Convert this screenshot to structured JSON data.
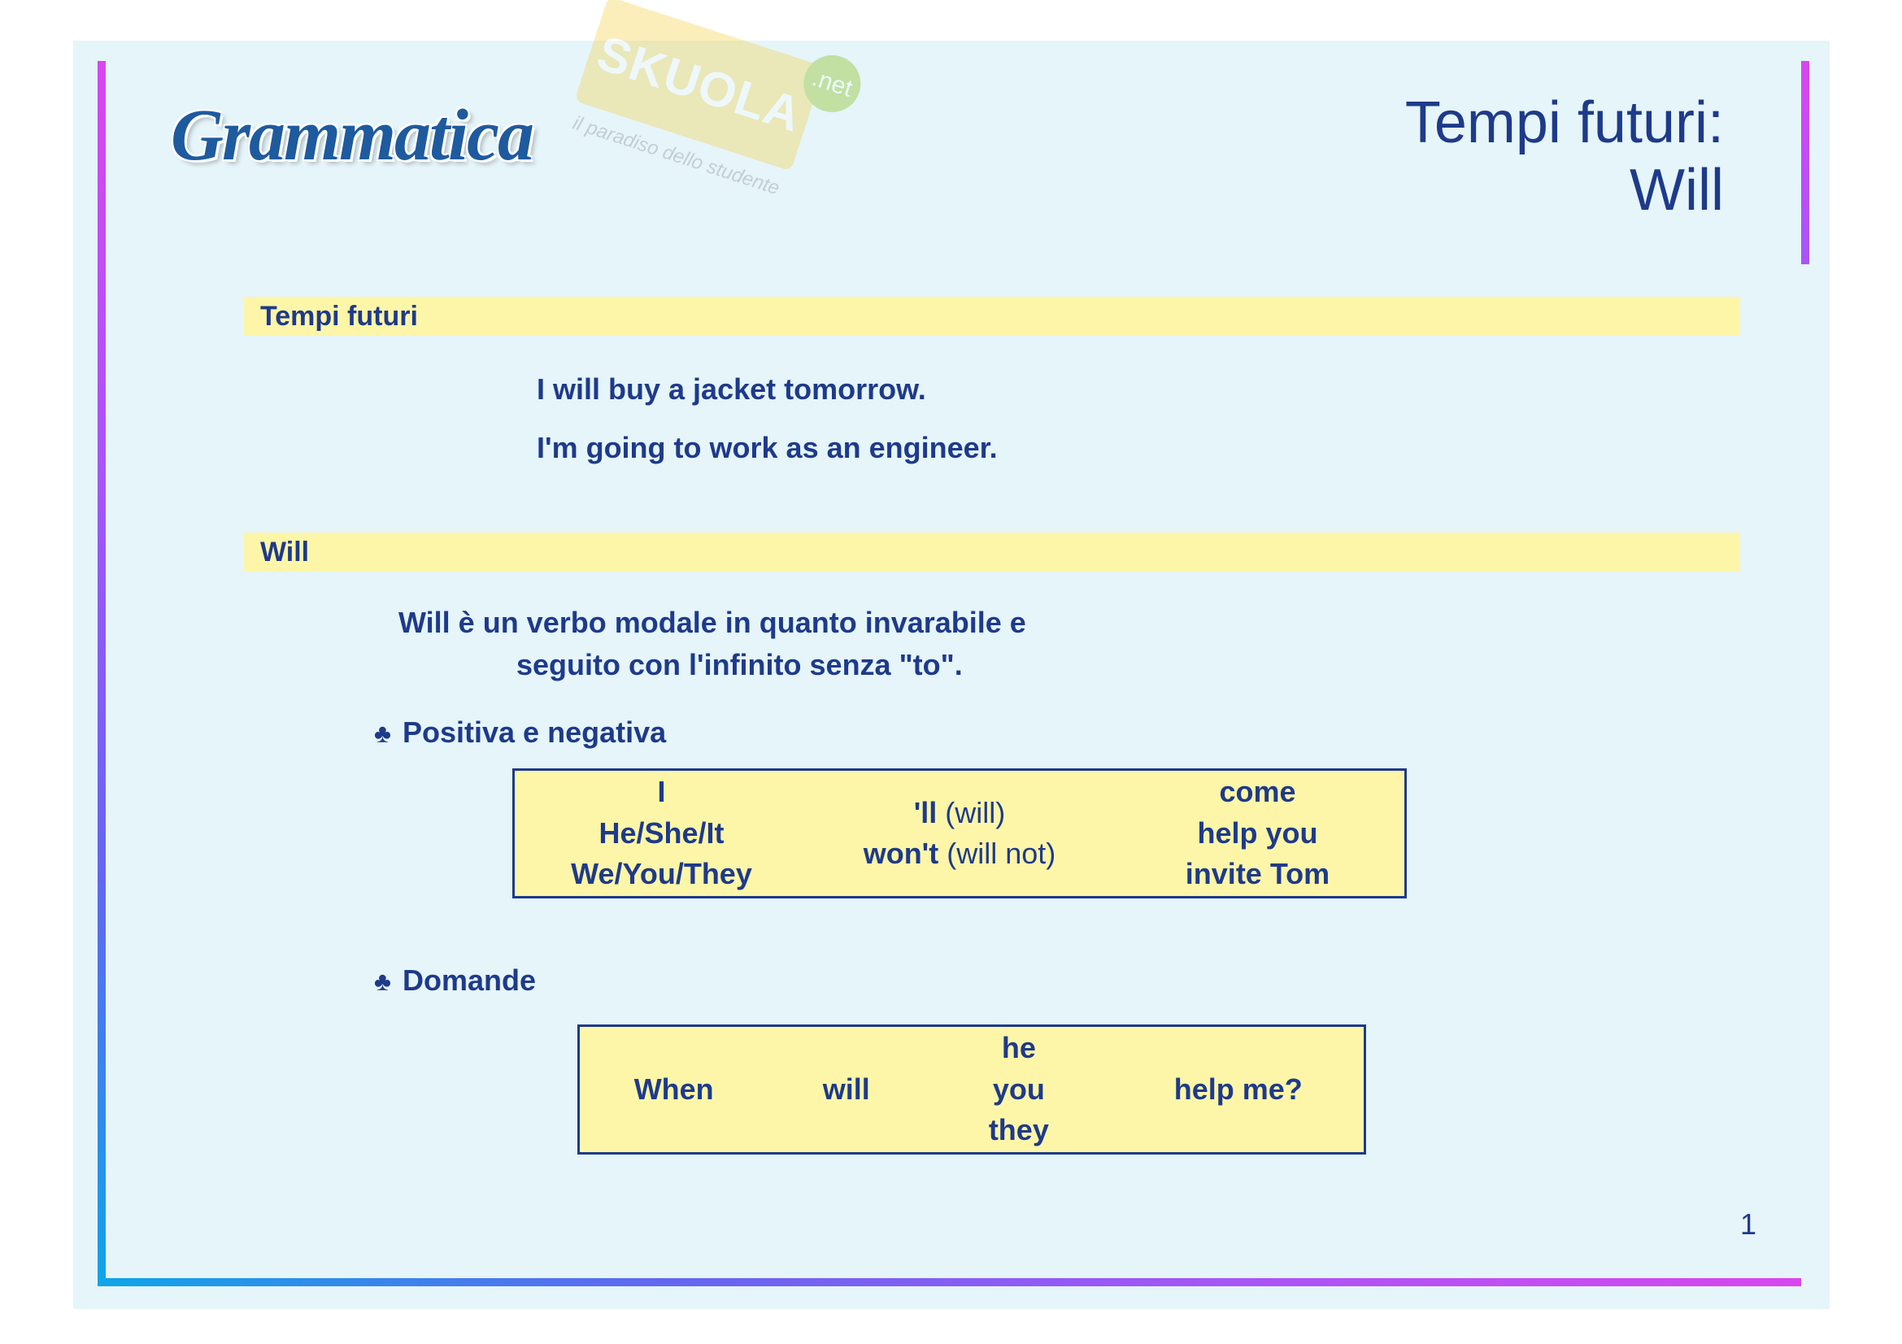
{
  "colors": {
    "slide_bg": "#e5f5fa",
    "text_primary": "#1e3a8a",
    "section_bar_bg": "#fdf6a8",
    "table_bg": "#fdf6a8",
    "table_border": "#1e3a8a",
    "gradient_start": "#d946ef",
    "gradient_end": "#0ea5e9",
    "watermark_yellow": "#f4d03f",
    "watermark_green": "#7fba00",
    "page_bg": "#ffffff"
  },
  "typography": {
    "body_font": "Verdana, Arial, sans-serif",
    "logo_font": "Times New Roman, serif",
    "title_fontsize_pt": 54,
    "body_fontsize_pt": 27,
    "logo_fontsize_pt": 68
  },
  "logo": "Grammatica",
  "watermark": {
    "brand": "SKUOLA",
    "suffix": ".net",
    "tagline": "il paradiso dello studente"
  },
  "title": {
    "line1": "Tempi futuri:",
    "line2": "Will"
  },
  "sections": {
    "s1_label": "Tempi futuri",
    "s2_label": "Will"
  },
  "examples": {
    "ex1_bold": "I will buy",
    "ex1_rest": " a jacket tomorrow.",
    "ex2_bold": "I'm going to work",
    "ex2_rest": " as an engineer."
  },
  "description": {
    "line1_will": "Will",
    "line1_rest": "  è un verbo modale in quanto invarabile e",
    "line2": "seguito con l'infinito senza \"",
    "line2_bold": "to",
    "line2_end": "\"."
  },
  "subheadings": {
    "sh1": "Positiva e negativa",
    "sh2": "Domande"
  },
  "bullet_symbol": "♣",
  "table1": {
    "col1": {
      "r1": "I",
      "r2": "He/She/It",
      "r3": "We/You/They"
    },
    "col2": {
      "r1": "",
      "r2_b": "'ll",
      "r2_n": " (will)",
      "r3_b": "won't",
      "r3_n": " (will not)"
    },
    "col3": {
      "r1": "come",
      "r2": "help you",
      "r3": "invite Tom"
    }
  },
  "table2": {
    "c1": "When",
    "c2": "will",
    "c3": {
      "r1": "he",
      "r2": "you",
      "r3": "they"
    },
    "c4": "help me?"
  },
  "page_number": "1"
}
